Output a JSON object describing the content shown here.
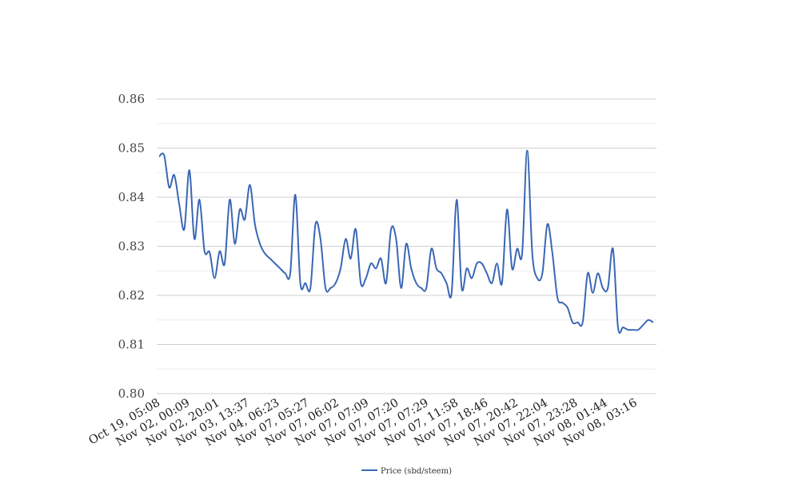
{
  "chart_data": {
    "type": "line",
    "title": "",
    "xlabel": "",
    "ylabel": "",
    "ylim": [
      0.8,
      0.86
    ],
    "yticks": [
      "0.80",
      "0.81",
      "0.82",
      "0.83",
      "0.84",
      "0.85",
      "0.86"
    ],
    "grid": "horizontal, major and minor",
    "legend_position": "bottom-center",
    "x_tick_labels": [
      "Oct 19, 05:08",
      "Nov 02, 00:09",
      "Nov 02, 20:01",
      "Nov 03, 13:37",
      "Nov 04, 06:23",
      "Nov 07, 05:27",
      "Nov 07, 06:02",
      "Nov 07, 07:09",
      "Nov 07, 07:20",
      "Nov 07, 07:29",
      "Nov 07, 11:58",
      "Nov 07, 18:46",
      "Nov 07, 20:42",
      "Nov 07, 22:04",
      "Nov 07, 23:28",
      "Nov 08, 01:44",
      "Nov 08, 03:16"
    ],
    "series": [
      {
        "name": "Price (sbd/steem)",
        "color": "#3a67b5",
        "values": [
          0.8483,
          0.8485,
          0.842,
          0.8445,
          0.8385,
          0.8335,
          0.8455,
          0.8315,
          0.8395,
          0.829,
          0.8288,
          0.8235,
          0.829,
          0.8265,
          0.8395,
          0.8305,
          0.8375,
          0.8355,
          0.8425,
          0.8345,
          0.8305,
          0.8285,
          0.8275,
          0.8265,
          0.8255,
          0.8245,
          0.8245,
          0.8405,
          0.8225,
          0.8225,
          0.8215,
          0.8345,
          0.8315,
          0.8215,
          0.8215,
          0.8225,
          0.8255,
          0.8315,
          0.8275,
          0.8335,
          0.8225,
          0.8235,
          0.8265,
          0.8255,
          0.8275,
          0.8225,
          0.8335,
          0.8315,
          0.8215,
          0.8305,
          0.8255,
          0.8225,
          0.8215,
          0.8215,
          0.8295,
          0.8255,
          0.8245,
          0.8225,
          0.8205,
          0.8395,
          0.8215,
          0.8255,
          0.8235,
          0.8265,
          0.8265,
          0.8245,
          0.8225,
          0.8265,
          0.8225,
          0.8375,
          0.8255,
          0.8295,
          0.8285,
          0.8495,
          0.8285,
          0.8235,
          0.8245,
          0.8345,
          0.8285,
          0.8195,
          0.8185,
          0.8175,
          0.8145,
          0.8145,
          0.8145,
          0.8245,
          0.8205,
          0.8245,
          0.8215,
          0.8215,
          0.8295,
          0.8135,
          0.8135,
          0.813,
          0.813,
          0.813,
          0.814,
          0.815,
          0.8145
        ]
      }
    ]
  }
}
